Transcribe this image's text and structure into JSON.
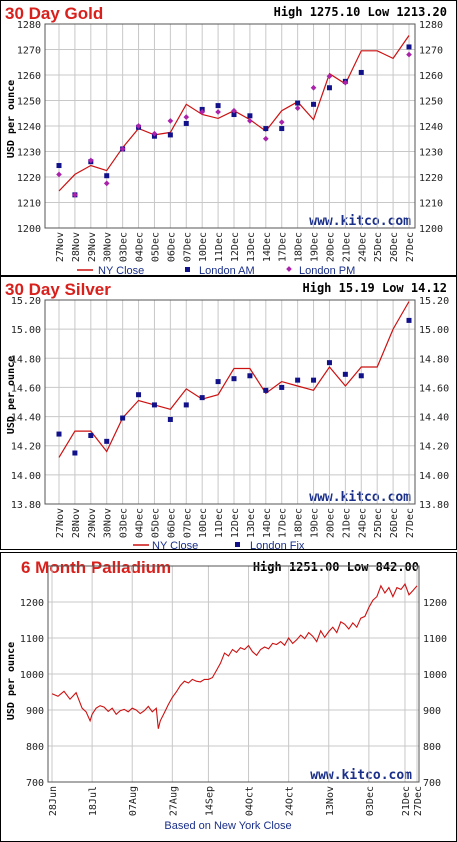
{
  "chart_data": [
    {
      "type": "line",
      "title": "30 Day Gold",
      "high_low": "High 1275.10 Low 1213.20",
      "ylabel": "USD per ounce",
      "watermark": "www.kitco.com",
      "ylim": [
        1200,
        1280
      ],
      "yticks": [
        "1200",
        "1210",
        "1220",
        "1230",
        "1240",
        "1250",
        "1260",
        "1270",
        "1280"
      ],
      "categories": [
        "27Nov",
        "28Nov",
        "29Nov",
        "30Nov",
        "03Dec",
        "04Dec",
        "05Dec",
        "06Dec",
        "07Dec",
        "10Dec",
        "11Dec",
        "12Dec",
        "13Dec",
        "14Dec",
        "17Dec",
        "18Dec",
        "19Dec",
        "20Dec",
        "21Dec",
        "24Dec",
        "25Dec",
        "26Dec",
        "27Dec"
      ],
      "series": [
        {
          "name": "NY Close",
          "style": "line",
          "color": "#cc1111",
          "values": [
            1214.5,
            1221.0,
            1224.5,
            1222.5,
            1231.5,
            1239.0,
            1236.5,
            1237.5,
            1248.5,
            1244.5,
            1243.0,
            1246.0,
            1242.5,
            1238.0,
            1246.0,
            1249.5,
            1242.5,
            1260.5,
            1256.5,
            1269.5,
            1269.5,
            1266.5,
            1275.5
          ]
        },
        {
          "name": "London AM",
          "style": "square",
          "color": "#11118a",
          "values": [
            1224.5,
            1213.0,
            1226.0,
            1220.5,
            1231.0,
            1239.5,
            1236.0,
            1236.5,
            1241.0,
            1246.5,
            1248.0,
            1244.5,
            1244.0,
            1239.0,
            1239.0,
            1249.0,
            1248.5,
            1255.0,
            1257.5,
            1261.0,
            null,
            null,
            1271.0
          ]
        },
        {
          "name": "London PM",
          "style": "diamond",
          "color": "#aa22aa",
          "values": [
            1221.0,
            1213.0,
            1226.5,
            1217.5,
            1231.0,
            1240.0,
            1237.0,
            1242.0,
            1243.5,
            1245.5,
            1245.5,
            1246.0,
            1242.0,
            1235.0,
            1241.5,
            1247.0,
            1255.0,
            1259.5,
            1257.0,
            null,
            null,
            null,
            1268.0
          ]
        }
      ]
    },
    {
      "type": "line",
      "title": "30 Day Silver",
      "high_low": "High 15.19 Low 14.12",
      "ylabel": "USD per ounce",
      "watermark": "www.kitco.com",
      "ylim": [
        13.8,
        15.2
      ],
      "yticks": [
        "13.80",
        "14.00",
        "14.20",
        "14.40",
        "14.60",
        "14.80",
        "15.00",
        "15.20"
      ],
      "categories": [
        "27Nov",
        "28Nov",
        "29Nov",
        "30Nov",
        "03Dec",
        "04Dec",
        "05Dec",
        "06Dec",
        "07Dec",
        "10Dec",
        "11Dec",
        "12Dec",
        "13Dec",
        "14Dec",
        "17Dec",
        "18Dec",
        "19Dec",
        "20Dec",
        "21Dec",
        "24Dec",
        "25Dec",
        "26Dec",
        "27Dec"
      ],
      "series": [
        {
          "name": "NY Close",
          "style": "line",
          "color": "#cc1111",
          "values": [
            14.12,
            14.3,
            14.3,
            14.16,
            14.39,
            14.51,
            14.48,
            14.45,
            14.59,
            14.52,
            14.55,
            14.73,
            14.73,
            14.56,
            14.64,
            14.61,
            14.58,
            14.74,
            14.61,
            14.74,
            14.74,
            15.0,
            15.19
          ]
        },
        {
          "name": "London Fix",
          "style": "square",
          "color": "#11118a",
          "values": [
            14.28,
            14.15,
            14.27,
            14.23,
            14.39,
            14.55,
            14.48,
            14.38,
            14.48,
            14.53,
            14.64,
            14.66,
            14.68,
            14.58,
            14.6,
            14.65,
            14.65,
            14.77,
            14.69,
            14.68,
            null,
            null,
            15.06
          ]
        }
      ]
    },
    {
      "type": "line",
      "title": "6 Month Palladium",
      "high_low": "High 1251.00 Low 842.00",
      "ylabel": "USD per ounce",
      "watermark": "www.kitco.com",
      "xlabel": "Based on New York Close",
      "ylim": [
        700,
        1300
      ],
      "yticks": [
        "700",
        "800",
        "900",
        "1000",
        "1100",
        "1200"
      ],
      "xticks": [
        "28Jun",
        "18Jul",
        "07Aug",
        "27Aug",
        "14Sep",
        "04Oct",
        "24Oct",
        "13Nov",
        "03Dec",
        "21Dec",
        "27Dec"
      ],
      "xtick_days": [
        0,
        20,
        40,
        60,
        78,
        98,
        118,
        138,
        158,
        176,
        182
      ],
      "series": [
        {
          "name": "NY Close",
          "style": "line",
          "color": "#cc1111",
          "x": [
            0,
            3,
            6,
            9,
            12,
            15,
            17,
            19,
            20,
            22,
            24,
            26,
            28,
            30,
            32,
            34,
            36,
            38,
            40,
            42,
            44,
            46,
            48,
            50,
            52,
            53,
            54,
            56,
            58,
            60,
            62,
            64,
            66,
            68,
            70,
            72,
            74,
            76,
            78,
            80,
            82,
            84,
            86,
            88,
            90,
            92,
            94,
            96,
            98,
            100,
            102,
            104,
            106,
            108,
            110,
            112,
            114,
            116,
            118,
            120,
            122,
            124,
            126,
            128,
            130,
            132,
            134,
            136,
            138,
            140,
            142,
            144,
            146,
            148,
            150,
            152,
            154,
            156,
            158,
            160,
            162,
            164,
            166,
            168,
            170,
            172,
            174,
            176,
            178,
            180,
            182
          ],
          "values": [
            945,
            938,
            952,
            930,
            948,
            905,
            895,
            870,
            888,
            905,
            912,
            908,
            896,
            905,
            888,
            898,
            902,
            895,
            905,
            900,
            890,
            898,
            910,
            895,
            905,
            848,
            870,
            892,
            915,
            935,
            950,
            968,
            980,
            975,
            985,
            980,
            978,
            985,
            985,
            990,
            1010,
            1030,
            1058,
            1050,
            1068,
            1060,
            1073,
            1068,
            1079,
            1062,
            1052,
            1068,
            1075,
            1070,
            1085,
            1082,
            1090,
            1080,
            1100,
            1085,
            1095,
            1108,
            1098,
            1115,
            1105,
            1090,
            1120,
            1102,
            1118,
            1130,
            1115,
            1145,
            1138,
            1125,
            1142,
            1130,
            1155,
            1160,
            1185,
            1205,
            1215,
            1245,
            1225,
            1240,
            1215,
            1240,
            1235,
            1250,
            1220,
            1232,
            1245
          ]
        }
      ]
    }
  ],
  "legends": {
    "gold": [
      "NY Close",
      "London AM",
      "London PM"
    ],
    "silver": [
      "NY Close",
      "London Fix"
    ]
  }
}
